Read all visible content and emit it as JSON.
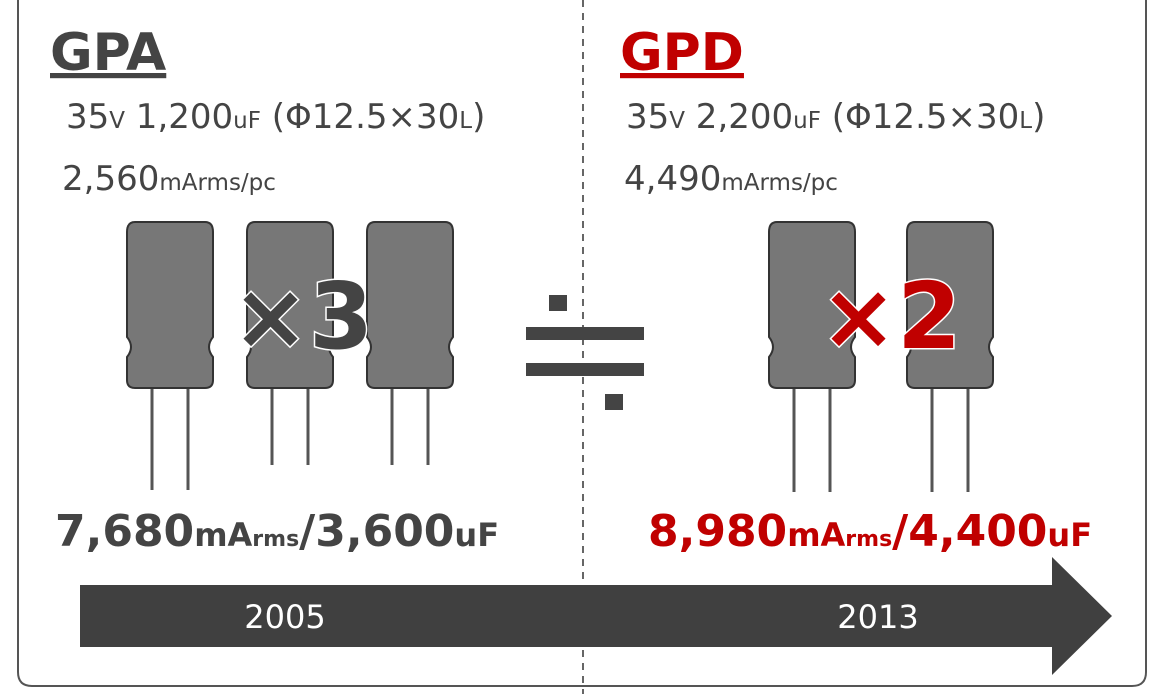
{
  "left": {
    "title": "GPA",
    "spec": [
      "35",
      "V",
      " 1,200",
      "uF",
      " (Φ12.5×30",
      "L",
      ")"
    ],
    "ripple": [
      "2,560",
      "mArms/pc"
    ],
    "multiplier": "×3",
    "total": [
      "7,680",
      "mA",
      "rms",
      "/3,600",
      "uF"
    ]
  },
  "right": {
    "title": "GPD",
    "spec": [
      "35",
      "V",
      " 2,200",
      "uF",
      " (Φ12.5×30",
      "L",
      ")"
    ],
    "ripple": [
      "4,490",
      "mArms/pc"
    ],
    "multiplier": "×2",
    "total": [
      "8,980",
      "mA",
      "rms",
      "/4,400",
      "uF"
    ]
  },
  "timeline": [
    "2005",
    "2013"
  ]
}
